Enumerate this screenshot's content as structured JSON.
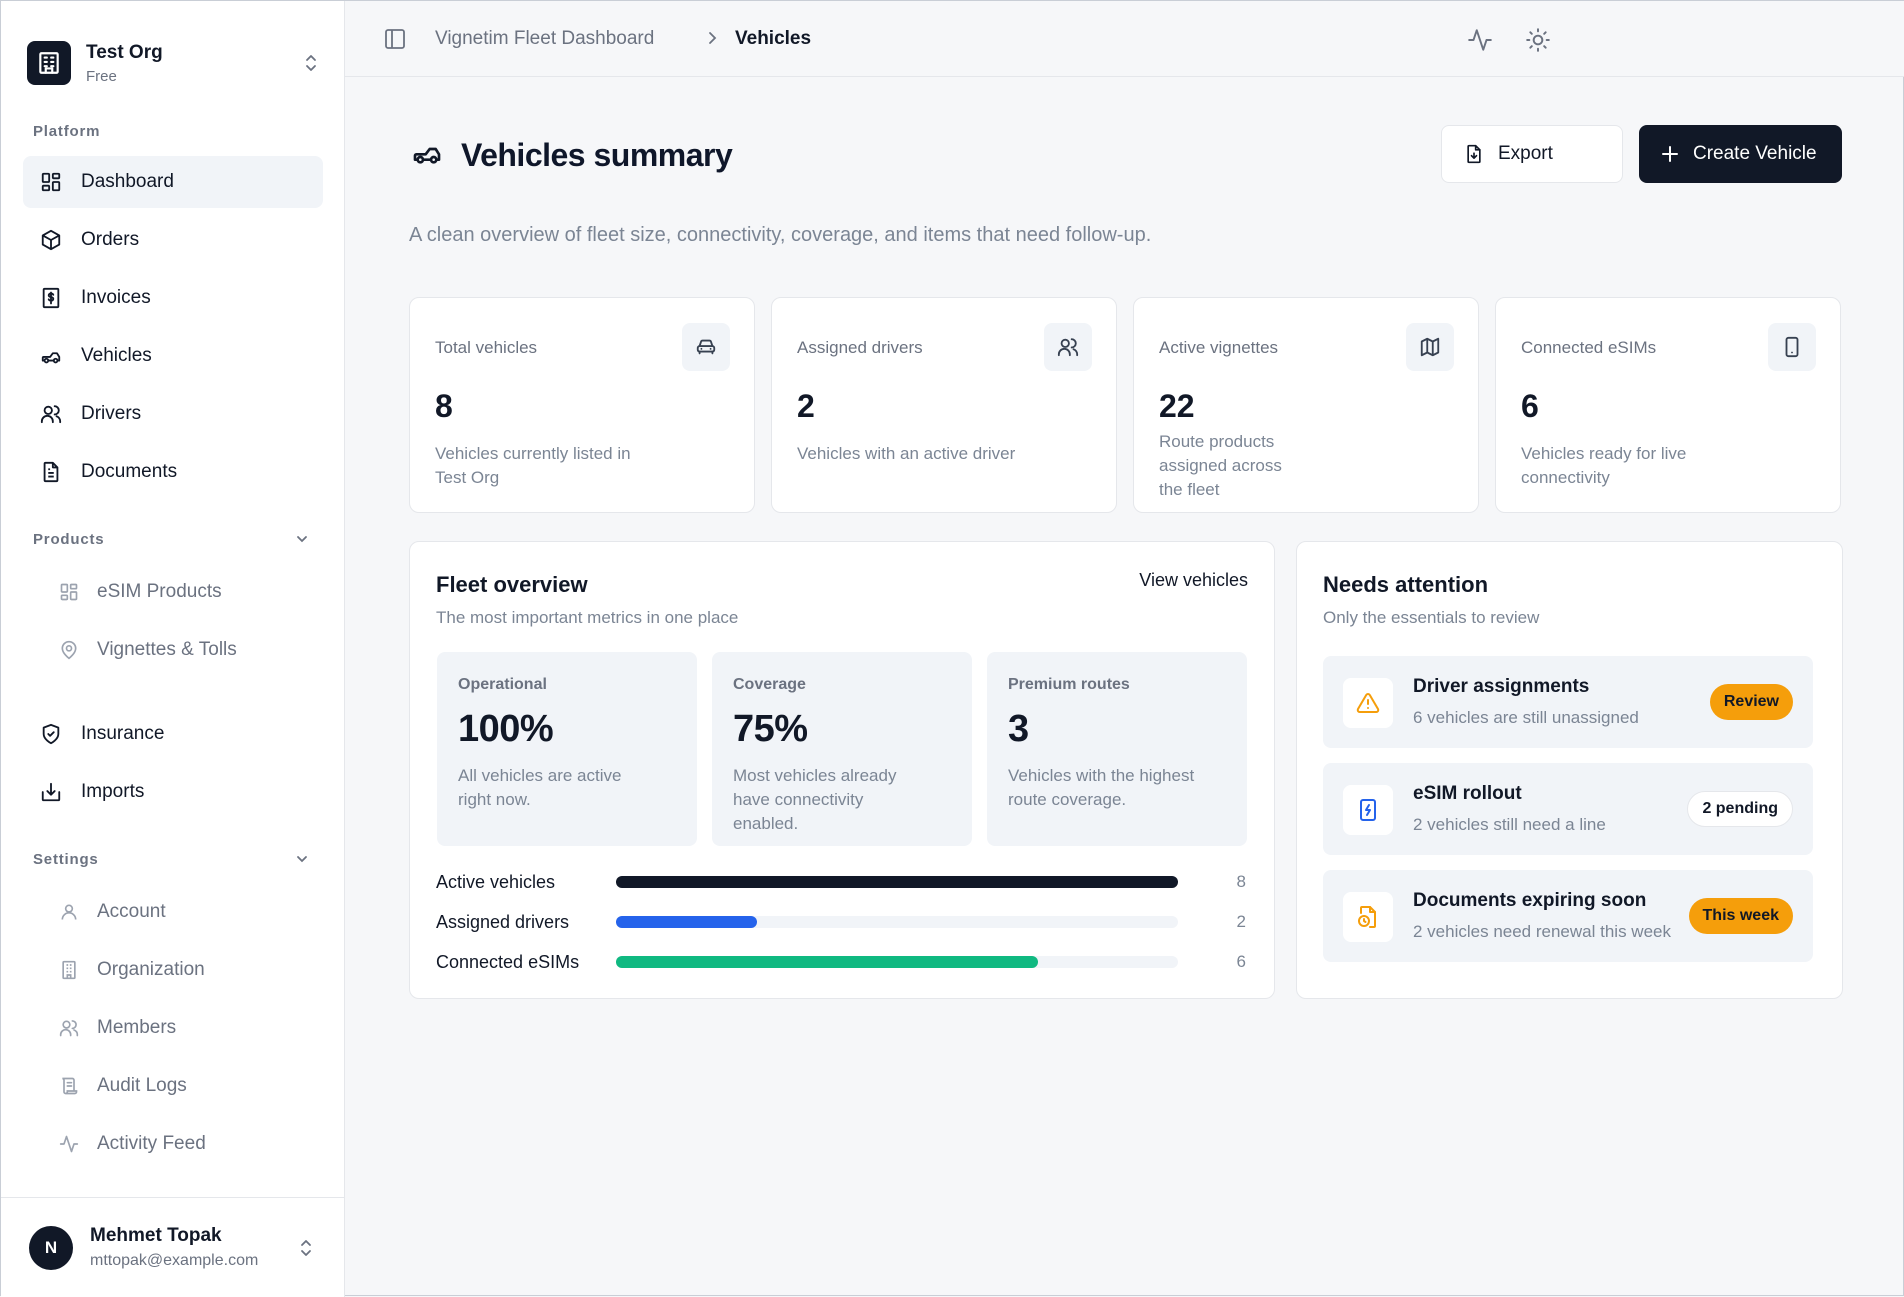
{
  "org": {
    "name": "Test Org",
    "plan": "Free"
  },
  "nav": {
    "platform_label": "Platform",
    "items": [
      {
        "label": "Dashboard",
        "icon": "layout-grid-icon"
      },
      {
        "label": "Orders",
        "icon": "package-icon"
      },
      {
        "label": "Invoices",
        "icon": "receipt-dollar-icon"
      },
      {
        "label": "Vehicles",
        "icon": "car-icon"
      },
      {
        "label": "Drivers",
        "icon": "users-icon"
      },
      {
        "label": "Documents",
        "icon": "file-text-icon"
      }
    ],
    "products_label": "Products",
    "products": [
      {
        "label": "eSIM Products",
        "icon": "layout-grid-icon"
      },
      {
        "label": "Vignettes & Tolls",
        "icon": "map-pin-icon"
      }
    ],
    "more": [
      {
        "label": "Insurance",
        "icon": "shield-check-icon"
      },
      {
        "label": "Imports",
        "icon": "import-icon"
      }
    ],
    "settings_label": "Settings",
    "settings": [
      {
        "label": "Account",
        "icon": "user-icon"
      },
      {
        "label": "Organization",
        "icon": "building-icon"
      },
      {
        "label": "Members",
        "icon": "users-icon"
      },
      {
        "label": "Audit Logs",
        "icon": "scroll-icon"
      },
      {
        "label": "Activity Feed",
        "icon": "activity-icon"
      }
    ]
  },
  "user": {
    "initial": "N",
    "name": "Mehmet Topak",
    "email": "mttopak@example.com"
  },
  "breadcrumb": {
    "parent": "Vignetim Fleet Dashboard",
    "current": "Vehicles"
  },
  "page": {
    "title": "Vehicles summary",
    "subtitle": "A clean overview of fleet size, connectivity, coverage, and items that need follow-up.",
    "export_label": "Export",
    "create_label": "Create Vehicle"
  },
  "stats": [
    {
      "label": "Total vehicles",
      "value": "8",
      "desc": "Vehicles currently listed in Test Org",
      "icon": "car-front-icon"
    },
    {
      "label": "Assigned drivers",
      "value": "2",
      "desc": "Vehicles with an active driver",
      "icon": "users-icon"
    },
    {
      "label": "Active vignettes",
      "value": "22",
      "desc": "Route products assigned across the fleet",
      "icon": "map-icon"
    },
    {
      "label": "Connected eSIMs",
      "value": "6",
      "desc": "Vehicles ready for live connectivity",
      "icon": "smartphone-icon"
    }
  ],
  "fleet": {
    "title": "Fleet overview",
    "subtitle": "The most important metrics in one place",
    "link": "View vehicles",
    "metrics": [
      {
        "label": "Operational",
        "value": "100%",
        "desc": "All vehicles are active right now."
      },
      {
        "label": "Coverage",
        "value": "75%",
        "desc": "Most vehicles already have connectivity enabled."
      },
      {
        "label": "Premium routes",
        "value": "3",
        "desc": "Vehicles with the highest route coverage."
      }
    ],
    "bars": [
      {
        "label": "Active vehicles",
        "value": 8,
        "total": 8,
        "display": "8",
        "color": "#111827"
      },
      {
        "label": "Assigned drivers",
        "value": 2,
        "total": 8,
        "display": "2",
        "color": "#2563eb"
      },
      {
        "label": "Connected eSIMs",
        "value": 6,
        "total": 8,
        "display": "6",
        "color": "#10b981"
      }
    ]
  },
  "attention": {
    "title": "Needs attention",
    "subtitle": "Only the essentials to review",
    "items": [
      {
        "title": "Driver assignments",
        "desc": "6 vehicles are still unassigned",
        "badge": "Review",
        "badge_style": "amber",
        "icon": "alert-triangle-icon",
        "icon_color": "#f59e0b"
      },
      {
        "title": "eSIM rollout",
        "desc": "2 vehicles still need a line",
        "badge": "2 pending",
        "badge_style": "white",
        "icon": "sim-zap-icon",
        "icon_color": "#2563eb"
      },
      {
        "title": "Documents expiring soon",
        "desc": "2 vehicles need renewal this week",
        "badge": "This week",
        "badge_style": "amber",
        "icon": "file-clock-icon",
        "icon_color": "#f59e0b"
      }
    ]
  }
}
